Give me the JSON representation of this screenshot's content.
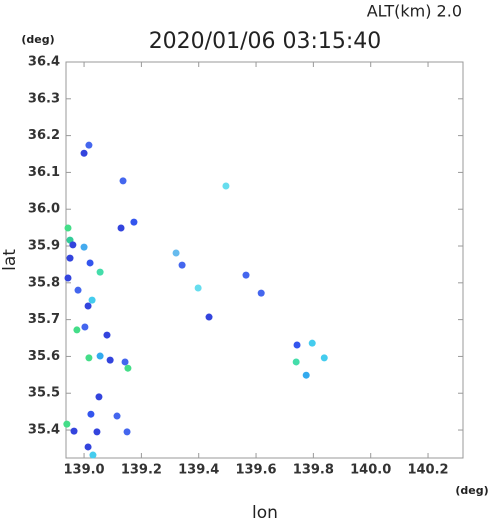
{
  "chart_data": {
    "type": "scatter",
    "title": "2020/01/06 03:15:40",
    "altitude_label": "ALT(km)  2.0",
    "y_unit": "(deg)",
    "x_unit": "(deg)",
    "xlabel": "lon",
    "ylabel": "lat",
    "xlim": [
      138.937,
      140.322
    ],
    "ylim": [
      35.324,
      36.4
    ],
    "xticks": [
      {
        "value": 139,
        "label": "139.0"
      },
      139.2,
      139.4,
      139.6,
      139.8,
      {
        "value": 140,
        "label": "140.0"
      },
      140.2
    ],
    "yticks": [
      35.4,
      35.5,
      35.6,
      35.7,
      35.8,
      35.9,
      {
        "value": 36,
        "label": "36.0"
      },
      36.1,
      36.2,
      36.3,
      36.4
    ],
    "x": [
      139.017,
      139.0,
      139.136,
      139.495,
      139.174,
      139.129,
      138.944,
      138.951,
      138.961,
      139.0,
      138.951,
      139.021,
      139.056,
      138.944,
      139.321,
      139.342,
      139.565,
      139.618,
      138.979,
      139.028,
      139.014,
      138.975,
      139.003,
      139.08,
      139.056,
      139.017,
      139.091,
      139.143,
      139.153,
      139.743,
      139.796,
      139.838,
      139.74,
      139.775,
      139.052,
      139.024,
      139.115,
      138.94,
      138.965,
      139.045,
      139.15,
      139.014,
      139.031,
      139.436,
      139.398
    ],
    "y": [
      36.174,
      36.152,
      36.077,
      36.063,
      35.965,
      35.949,
      35.949,
      35.916,
      35.903,
      35.897,
      35.867,
      35.854,
      35.829,
      35.813,
      35.881,
      35.848,
      35.821,
      35.772,
      35.78,
      35.753,
      35.737,
      35.672,
      35.68,
      35.658,
      35.601,
      35.596,
      35.59,
      35.585,
      35.568,
      35.631,
      35.636,
      35.596,
      35.585,
      35.549,
      35.49,
      35.443,
      35.438,
      35.416,
      35.397,
      35.395,
      35.395,
      35.354,
      35.332,
      35.707,
      35.786
    ],
    "colors": [
      "#4466ee",
      "#3344dd",
      "#4466ee",
      "#66ddee",
      "#3355ee",
      "#3344dd",
      "#44dd88",
      "#33cc99",
      "#3344dd",
      "#44aaee",
      "#3344dd",
      "#3355ee",
      "#44ddaa",
      "#3344dd",
      "#66bbee",
      "#4466ee",
      "#4466ee",
      "#4466ee",
      "#4466ee",
      "#44ccee",
      "#3344dd",
      "#44dd88",
      "#4466ee",
      "#3344dd",
      "#33aaee",
      "#44dd88",
      "#3344dd",
      "#4466ee",
      "#44dd88",
      "#3355ee",
      "#44ccee",
      "#44ccee",
      "#44ddaa",
      "#33aaee",
      "#3344dd",
      "#3355ee",
      "#4466ee",
      "#44dd88",
      "#3344dd",
      "#3344dd",
      "#4466ee",
      "#3344dd",
      "#44ccee",
      "#3344dd",
      "#66ddee"
    ]
  }
}
